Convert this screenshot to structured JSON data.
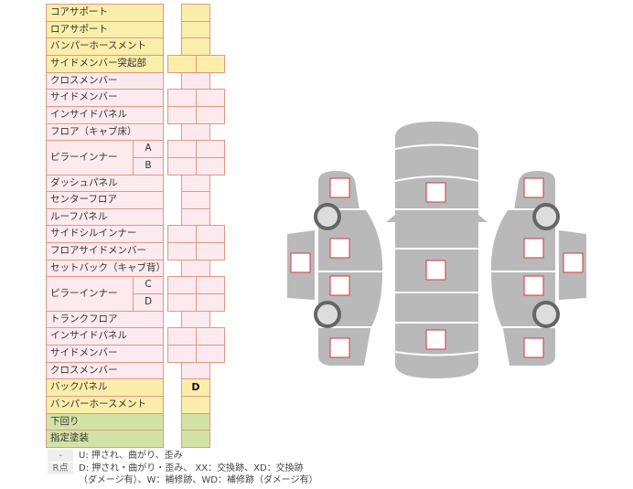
{
  "table": {
    "rows": [
      {
        "label": "コアサポート",
        "color": "y",
        "cells": "single",
        "value": ""
      },
      {
        "label": "ロアサポート",
        "color": "y",
        "cells": "single",
        "value": ""
      },
      {
        "label": "バンパーホースメント",
        "color": "y",
        "cells": "single",
        "value": ""
      },
      {
        "label": "サイドメンバー突起部",
        "color": "y",
        "cells": "double",
        "value": ""
      },
      {
        "label": "クロスメンバー",
        "color": "p",
        "cells": "single",
        "value": ""
      },
      {
        "label": "サイドメンバー",
        "color": "p",
        "cells": "double",
        "value": ""
      },
      {
        "label": "インサイドパネル",
        "color": "p",
        "cells": "double",
        "value": ""
      },
      {
        "label": "フロア（キャブ床）",
        "color": "p",
        "cells": "single",
        "value": ""
      },
      {
        "label": "ピラーインナー",
        "sub": "A",
        "color": "p",
        "cells": "double",
        "value": ""
      },
      {
        "label": "",
        "sub": "B",
        "color": "p",
        "cells": "double",
        "value": ""
      },
      {
        "label": "ダッシュパネル",
        "color": "p",
        "cells": "single",
        "value": ""
      },
      {
        "label": "センターフロア",
        "color": "p",
        "cells": "single",
        "value": ""
      },
      {
        "label": "ルーフパネル",
        "color": "p",
        "cells": "single",
        "value": ""
      },
      {
        "label": "サイドシルインナー",
        "color": "p",
        "cells": "double",
        "value": ""
      },
      {
        "label": "フロアサイドメンバー",
        "color": "p",
        "cells": "double",
        "value": ""
      },
      {
        "label": "セットバック（キャブ背）",
        "color": "p",
        "cells": "single",
        "value": ""
      },
      {
        "label": "ピラーインナー",
        "sub": "C",
        "color": "p",
        "cells": "double",
        "value": ""
      },
      {
        "label": "",
        "sub": "D",
        "color": "p",
        "cells": "double",
        "value": ""
      },
      {
        "label": "トランクフロア",
        "color": "p",
        "cells": "single",
        "value": ""
      },
      {
        "label": "インサイドパネル",
        "color": "p",
        "cells": "double",
        "value": ""
      },
      {
        "label": "サイドメンバー",
        "color": "p",
        "cells": "double",
        "value": ""
      },
      {
        "label": "クロスメンバー",
        "color": "p",
        "cells": "single",
        "value": ""
      },
      {
        "label": "バックパネル",
        "color": "y",
        "cells": "single",
        "value": "D"
      },
      {
        "label": "バンパーホースメント",
        "color": "y",
        "cells": "single",
        "value": ""
      },
      {
        "label": "下回り",
        "color": "g",
        "cells": "single",
        "value": ""
      },
      {
        "label": "指定塗装",
        "color": "g",
        "cells": "single",
        "value": ""
      }
    ]
  },
  "legend": [
    {
      "key": "-",
      "text": "U: 押され、曲がり、歪み"
    },
    {
      "key": "R点",
      "text": "D: 押され・曲がり・歪み、 XX：交換跡、XD：交換跡",
      "text2": "（ダメージ有）、W：補修跡、WD：補修跡（ダメージ有）"
    }
  ],
  "colors": {
    "yellow": "#fbeeaa",
    "pink": "#fdeaee",
    "green": "#d3e2a6",
    "border": "#dd9a84",
    "body": "#b9b9b9",
    "marker": "#d9363e"
  }
}
